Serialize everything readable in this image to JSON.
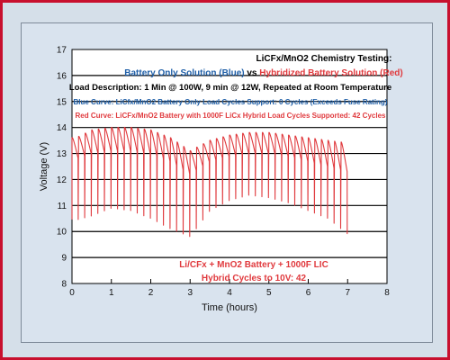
{
  "colors": {
    "border": "#c8102e",
    "background": "#d5dfe9",
    "blue": "#1f5fa8",
    "red": "#e03a3e",
    "black": "#000000"
  },
  "chart_data": {
    "type": "line",
    "xlabel": "Time (hours)",
    "ylabel": "Voltage (V)",
    "xlim": [
      0,
      8
    ],
    "ylim": [
      8,
      17
    ],
    "x_ticks": [
      "0",
      "1",
      "2",
      "3",
      "4",
      "5",
      "6",
      "7",
      "8"
    ],
    "y_ticks": [
      "8",
      "9",
      "10",
      "11",
      "12",
      "13",
      "14",
      "15",
      "16",
      "17"
    ],
    "grid": "horizontal",
    "annotations": {
      "heading": "LiCFx/MnO2 Chemistry Testing:",
      "subheading_blue": "Battery Only Solution (Blue)",
      "subheading_vs": " vs ",
      "subheading_red": "Hybridized Battery Solution (Red)",
      "load_description": "Load Description: 1 Min @ 100W, 9 min @ 12W, Repeated at Room Temperature",
      "blue_curve": "Blue Curve: LiCfx/MnO2 Battery Only Load Cycles Support: 0 Cycles (Exceeds Fuse Rating)",
      "red_curve": "Red Curve: LiCFx/MnO2 Battery with 1000F LiCx Hybrid Load Cycles Supported: 42 Cycles",
      "inset_line1": "Li/CFx + MnO2 Battery + 1000F LIC",
      "inset_line2": "Hybrid Cycles to 10V: 42"
    },
    "series": [
      {
        "color": "#e03a3e",
        "cycles": 42,
        "envelope_high": {
          "x": [
            0.1,
            0.5,
            1.0,
            1.5,
            2.0,
            2.5,
            3.0,
            3.5,
            4.0,
            4.5,
            5.0,
            5.5,
            6.0,
            6.5,
            7.0
          ],
          "y": [
            13.6,
            13.9,
            14.0,
            14.0,
            13.9,
            13.6,
            13.1,
            13.5,
            13.7,
            13.8,
            13.8,
            13.7,
            13.6,
            13.5,
            13.4
          ]
        },
        "envelope_plateau": {
          "x": [
            0.1,
            0.5,
            1.0,
            1.5,
            2.0,
            2.5,
            3.0,
            3.5,
            4.0,
            4.5,
            5.0,
            5.5,
            6.0,
            6.5,
            7.0
          ],
          "y": [
            12.8,
            13.0,
            13.1,
            13.1,
            13.0,
            12.7,
            12.2,
            12.7,
            12.9,
            13.0,
            13.0,
            12.9,
            12.7,
            12.5,
            12.3
          ]
        },
        "envelope_low": {
          "x": [
            0.0,
            0.5,
            1.0,
            1.5,
            2.0,
            2.5,
            3.0,
            3.5,
            4.0,
            4.5,
            5.0,
            5.5,
            6.0,
            6.5,
            7.0
          ],
          "y": [
            10.4,
            10.6,
            10.9,
            10.8,
            10.5,
            10.1,
            9.8,
            10.8,
            11.2,
            11.4,
            11.3,
            11.1,
            10.8,
            10.5,
            9.9
          ]
        }
      }
    ]
  }
}
